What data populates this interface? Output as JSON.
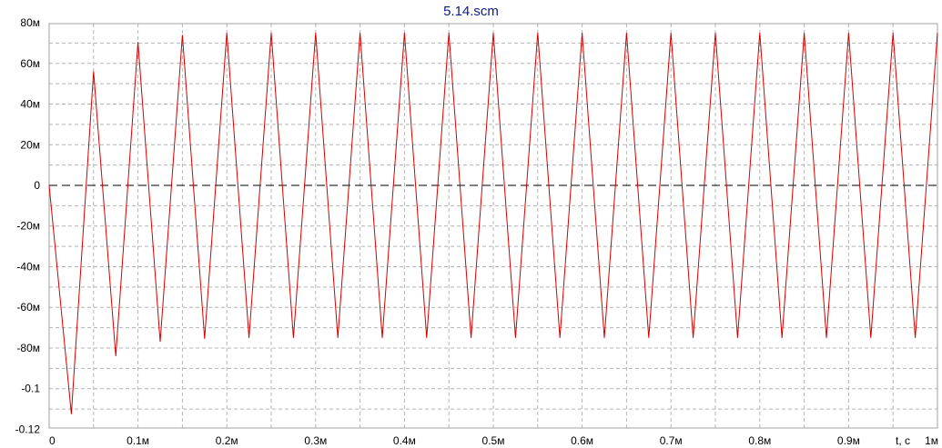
{
  "colors": {
    "title": "#0b1d8a",
    "signal": "#d40000",
    "zero_line": "#000000",
    "grid": "#b4b4b4",
    "frame": "#a0a0a0"
  },
  "chart_data": {
    "type": "line",
    "title": "5.14.scm",
    "xlabel": "t, с",
    "ylabel": "",
    "xlim": [
      0,
      0.001
    ],
    "ylim": [
      -0.12,
      0.08
    ],
    "grid": true,
    "x_ticks": [
      {
        "value": 0,
        "label": "0"
      },
      {
        "value": 0.0001,
        "label": "0.1м"
      },
      {
        "value": 0.0002,
        "label": "0.2м"
      },
      {
        "value": 0.0003,
        "label": "0.3м"
      },
      {
        "value": 0.0004,
        "label": "0.4м"
      },
      {
        "value": 0.0005,
        "label": "0.5м"
      },
      {
        "value": 0.0006,
        "label": "0.6м"
      },
      {
        "value": 0.0007,
        "label": "0.7м"
      },
      {
        "value": 0.0008,
        "label": "0.8м"
      },
      {
        "value": 0.0009,
        "label": "0.9м"
      },
      {
        "value": 0.001,
        "label": "1м"
      }
    ],
    "y_ticks": [
      {
        "value": 0.08,
        "label": "80м"
      },
      {
        "value": 0.06,
        "label": "60м"
      },
      {
        "value": 0.04,
        "label": "40м"
      },
      {
        "value": 0.02,
        "label": "20м"
      },
      {
        "value": 0,
        "label": "0"
      },
      {
        "value": -0.02,
        "label": "-20м"
      },
      {
        "value": -0.04,
        "label": "-40м"
      },
      {
        "value": -0.06,
        "label": "-60м"
      },
      {
        "value": -0.08,
        "label": "-80м"
      },
      {
        "value": -0.1,
        "label": "-0.1"
      },
      {
        "value": -0.12,
        "label": "-0.12"
      }
    ],
    "reference_line": {
      "y": 0,
      "style": "dashed"
    },
    "series": [
      {
        "x": [
          0,
          2.5e-05,
          5e-05,
          7.5e-05,
          0.0001,
          0.000125,
          0.00015,
          0.000175,
          0.0002,
          0.000225,
          0.00025,
          0.000275,
          0.0003,
          0.000325,
          0.00035,
          0.000375,
          0.0004,
          0.000425,
          0.00045,
          0.000475,
          0.0005,
          0.000525,
          0.00055,
          0.000575,
          0.0006,
          0.000625,
          0.00065,
          0.000675,
          0.0007,
          0.000725,
          0.00075,
          0.000775,
          0.0008,
          0.000825,
          0.00085,
          0.000875,
          0.0009,
          0.000925,
          0.00095,
          0.000975,
          0.001
        ],
        "y": [
          0,
          -0.1125,
          0.056,
          -0.084,
          0.0705,
          -0.077,
          0.074,
          -0.0755,
          0.075,
          -0.075,
          0.075,
          -0.075,
          0.075,
          -0.075,
          0.075,
          -0.075,
          0.075,
          -0.075,
          0.075,
          -0.075,
          0.075,
          -0.075,
          0.075,
          -0.075,
          0.075,
          -0.075,
          0.075,
          -0.075,
          0.075,
          -0.075,
          0.075,
          -0.075,
          0.075,
          -0.075,
          0.075,
          -0.075,
          0.075,
          -0.075,
          0.075,
          -0.075,
          0.075
        ]
      }
    ]
  }
}
